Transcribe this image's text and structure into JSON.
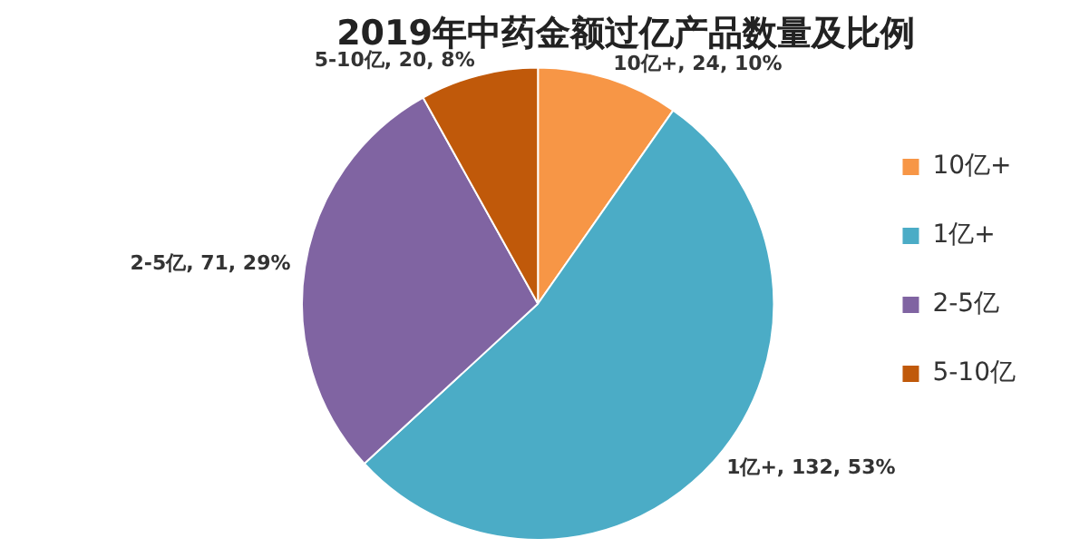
{
  "chart_data": {
    "type": "pie",
    "title": "2019年中药金额过亿产品数量及比例",
    "categories": [
      "10亿+",
      "1亿+",
      "2-5亿",
      "5-10亿"
    ],
    "values": [
      24,
      132,
      71,
      20
    ],
    "colors": [
      "#f79646",
      "#4bacc6",
      "#8064a2",
      "#c0590a"
    ],
    "value_labels": [
      "10亿+, 24, 10%",
      "1亿+, 132, 53%",
      "2-5亿, 71, 29%",
      "5-10亿, 20, 8%"
    ],
    "legend": "right"
  }
}
